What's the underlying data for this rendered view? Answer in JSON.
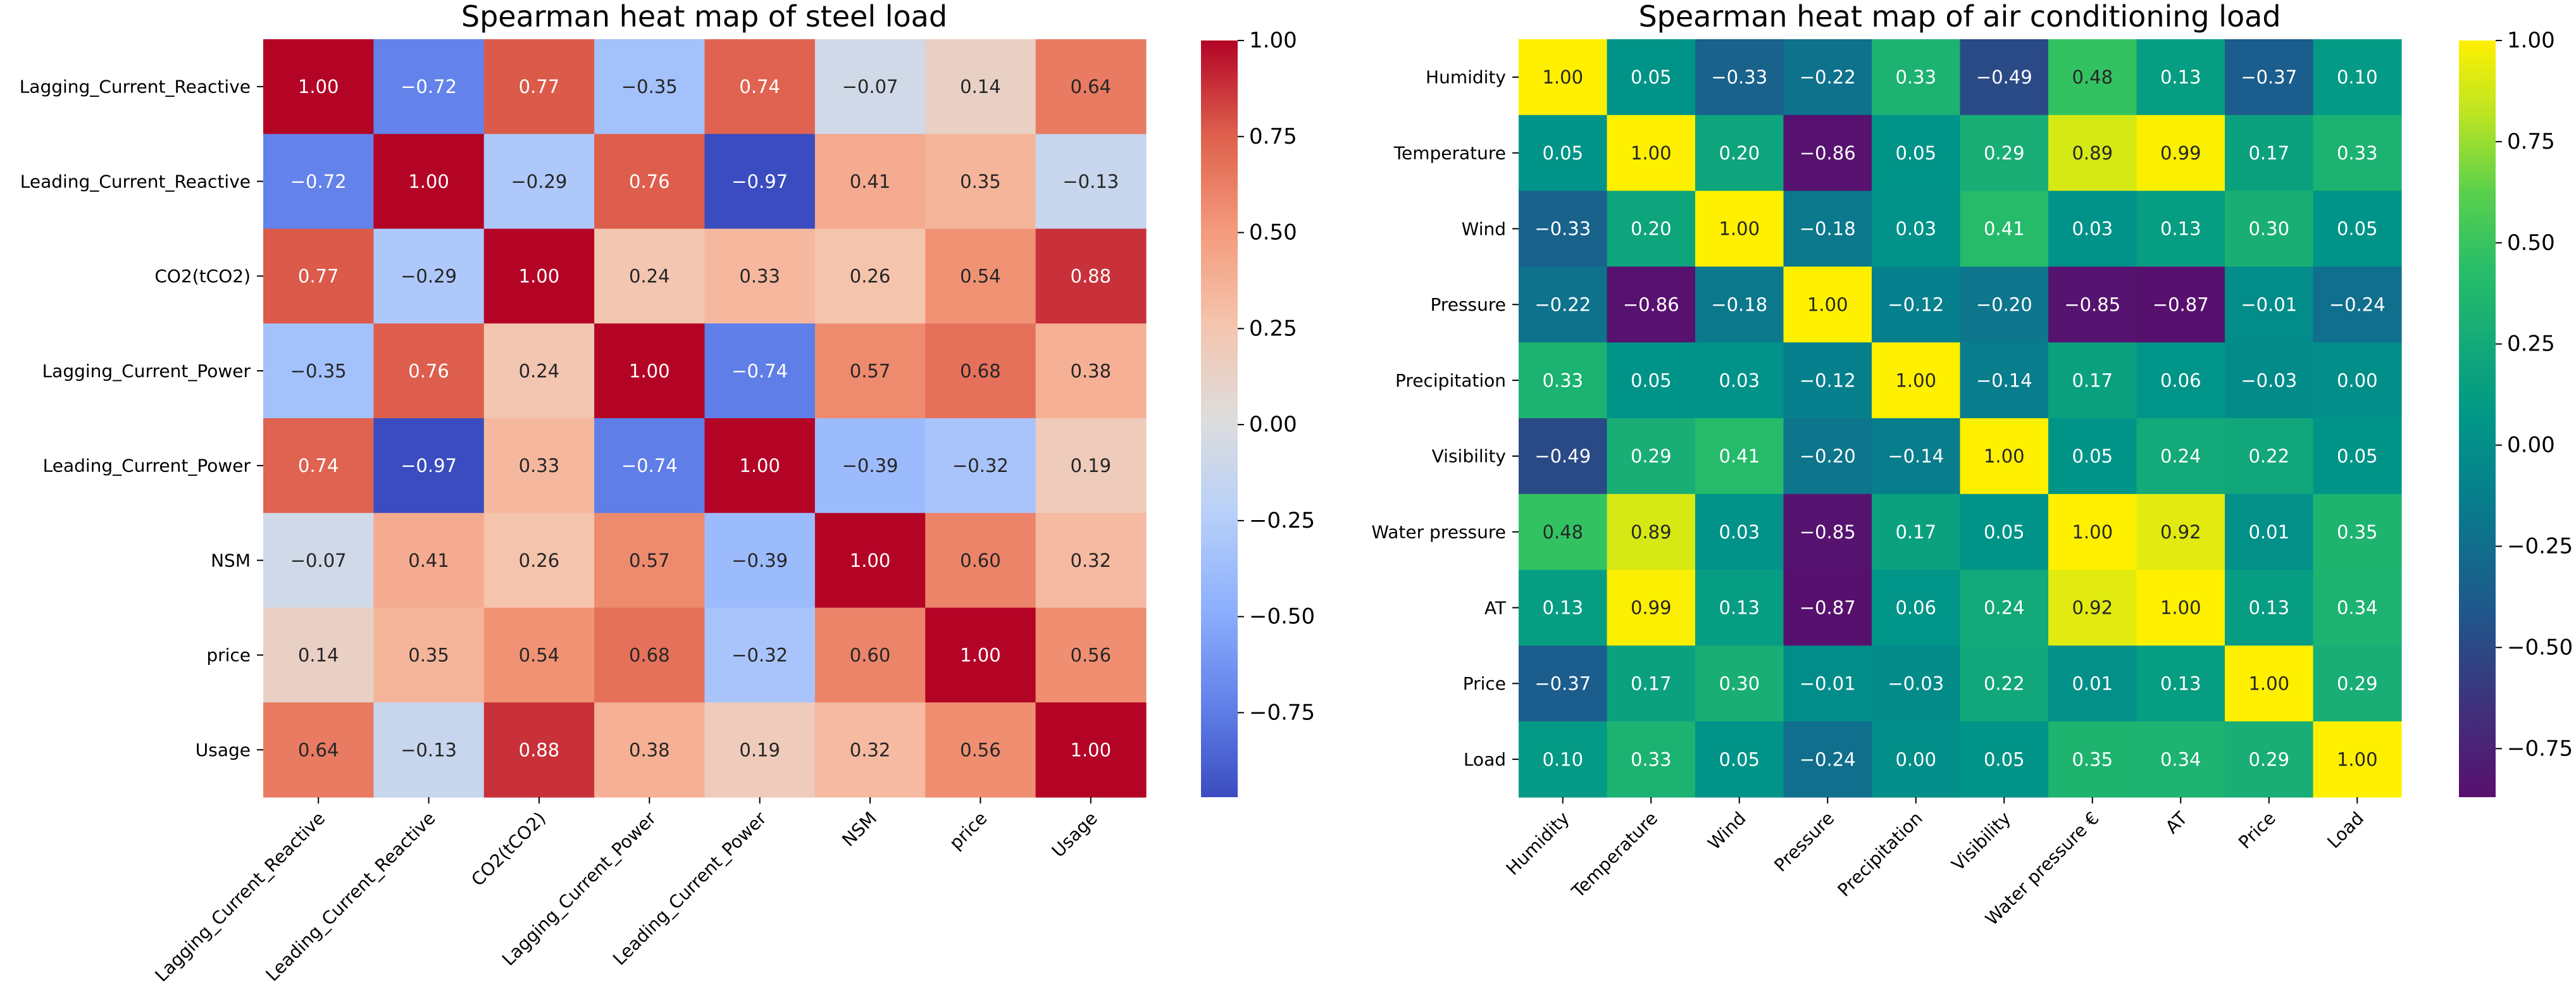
{
  "chart_data": [
    {
      "type": "heatmap",
      "title": "Spearman heat map of steel load",
      "colormap": "coolwarm",
      "vmin": -0.97,
      "vmax": 1.0,
      "row_labels": [
        "Lagging_Current_Reactive",
        "Leading_Current_Reactive",
        "CO2(tCO2)",
        "Lagging_Current_Power",
        "Leading_Current_Power",
        "NSM",
        "price",
        "Usage"
      ],
      "col_labels": [
        "Lagging_Current_Reactive",
        "Leading_Current_Reactive",
        "CO2(tCO2)",
        "Lagging_Current_Power",
        "Leading_Current_Power",
        "NSM",
        "price",
        "Usage"
      ],
      "values": [
        [
          1.0,
          -0.72,
          0.77,
          -0.35,
          0.74,
          -0.07,
          0.14,
          0.64
        ],
        [
          -0.72,
          1.0,
          -0.29,
          0.76,
          -0.97,
          0.41,
          0.35,
          -0.13
        ],
        [
          0.77,
          -0.29,
          1.0,
          0.24,
          0.33,
          0.26,
          0.54,
          0.88
        ],
        [
          -0.35,
          0.76,
          0.24,
          1.0,
          -0.74,
          0.57,
          0.68,
          0.38
        ],
        [
          0.74,
          -0.97,
          0.33,
          -0.74,
          1.0,
          -0.39,
          -0.32,
          0.19
        ],
        [
          -0.07,
          0.41,
          0.26,
          0.57,
          -0.39,
          1.0,
          0.6,
          0.32
        ],
        [
          0.14,
          0.35,
          0.54,
          0.68,
          -0.32,
          0.6,
          1.0,
          0.56
        ],
        [
          0.64,
          -0.13,
          0.88,
          0.38,
          0.19,
          0.32,
          0.56,
          1.0
        ]
      ],
      "colorbar_ticks": [
        1.0,
        0.75,
        0.5,
        0.25,
        0.0,
        -0.25,
        -0.5,
        -0.75
      ]
    },
    {
      "type": "heatmap",
      "title": "Spearman heat map of air conditioning load",
      "colormap": "viridis-like",
      "vmin": -0.87,
      "vmax": 1.0,
      "row_labels": [
        "Humidity",
        "Temperature",
        "Wind",
        "Pressure",
        "Precipitation",
        "Visibility",
        "Water pressure",
        "AT",
        "Price",
        "Load"
      ],
      "col_labels": [
        "Humidity",
        "Temperature",
        "Wind",
        "Pressure",
        "Precipitation",
        "Visibility",
        "Water pressure €",
        "AT",
        "Price",
        "Load"
      ],
      "values": [
        [
          1.0,
          0.05,
          -0.33,
          -0.22,
          0.33,
          -0.49,
          0.48,
          0.13,
          -0.37,
          0.1
        ],
        [
          0.05,
          1.0,
          0.2,
          -0.86,
          0.05,
          0.29,
          0.89,
          0.99,
          0.17,
          0.33
        ],
        [
          -0.33,
          0.2,
          1.0,
          -0.18,
          0.03,
          0.41,
          0.03,
          0.13,
          0.3,
          0.05
        ],
        [
          -0.22,
          -0.86,
          -0.18,
          1.0,
          -0.12,
          -0.2,
          -0.85,
          -0.87,
          -0.01,
          -0.24
        ],
        [
          0.33,
          0.05,
          0.03,
          -0.12,
          1.0,
          -0.14,
          0.17,
          0.06,
          -0.03,
          -0.0
        ],
        [
          -0.49,
          0.29,
          0.41,
          -0.2,
          -0.14,
          1.0,
          0.05,
          0.24,
          0.22,
          0.05
        ],
        [
          0.48,
          0.89,
          0.03,
          -0.85,
          0.17,
          0.05,
          1.0,
          0.92,
          0.01,
          0.35
        ],
        [
          0.13,
          0.99,
          0.13,
          -0.87,
          0.06,
          0.24,
          0.92,
          1.0,
          0.13,
          0.34
        ],
        [
          -0.37,
          0.17,
          0.3,
          -0.01,
          -0.03,
          0.22,
          0.01,
          0.13,
          1.0,
          0.29
        ],
        [
          0.1,
          0.33,
          0.05,
          -0.24,
          -0.0,
          0.05,
          0.35,
          0.34,
          0.29,
          1.0
        ]
      ],
      "colorbar_ticks": [
        1.0,
        0.75,
        0.5,
        0.25,
        0.0,
        -0.25,
        -0.5,
        -0.75
      ]
    }
  ]
}
